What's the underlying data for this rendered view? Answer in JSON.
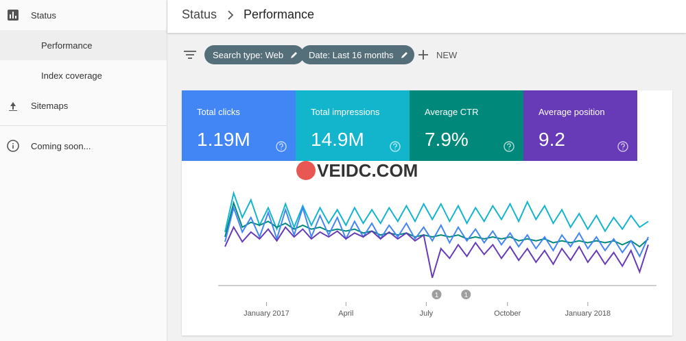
{
  "sidebar": {
    "items": [
      {
        "label": "Status"
      },
      {
        "label": "Performance"
      },
      {
        "label": "Index coverage"
      },
      {
        "label": "Sitemaps"
      },
      {
        "label": "Coming soon..."
      }
    ]
  },
  "header": {
    "breadcrumb": [
      "Status",
      "Performance"
    ]
  },
  "filters": {
    "chips": [
      "Search type: Web",
      "Date: Last 16 months"
    ],
    "new": "NEW"
  },
  "metrics": [
    {
      "label": "Total clicks",
      "value": "1.19M",
      "color": "#4285f4"
    },
    {
      "label": "Total impressions",
      "value": "14.9M",
      "color": "#12b5cb"
    },
    {
      "label": "Average CTR",
      "value": "7.9%",
      "color": "#00897b"
    },
    {
      "label": "Average position",
      "value": "9.2",
      "color": "#673ab7"
    }
  ],
  "watermark": "VEIDC.COM",
  "chart_data": {
    "type": "line",
    "xlim": [
      0,
      49
    ],
    "ylim": [
      0,
      100
    ],
    "xticks": [
      {
        "value": 4.8,
        "label": "January 2017"
      },
      {
        "value": 14,
        "label": "April"
      },
      {
        "value": 23.3,
        "label": "July"
      },
      {
        "value": 32.7,
        "label": "October"
      },
      {
        "value": 42,
        "label": "January 2018"
      }
    ],
    "annotations": [
      {
        "x": 24.5,
        "label": "1"
      },
      {
        "x": 27.9,
        "label": "1"
      }
    ],
    "series": [
      {
        "color": "#12b5cb",
        "values": [
          55,
          95,
          70,
          88,
          62,
          80,
          58,
          84,
          60,
          82,
          62,
          80,
          64,
          78,
          62,
          80,
          64,
          78,
          64,
          80,
          66,
          82,
          66,
          84,
          68,
          84,
          66,
          82,
          64,
          80,
          66,
          82,
          68,
          84,
          66,
          86,
          68,
          82,
          64,
          78,
          60,
          74,
          58,
          72,
          56,
          70,
          58,
          72,
          60,
          66
        ]
      },
      {
        "color": "#00897b",
        "values": [
          50,
          85,
          60,
          65,
          62,
          66,
          60,
          64,
          58,
          62,
          58,
          60,
          56,
          58,
          56,
          58,
          54,
          56,
          52,
          54,
          52,
          54,
          50,
          52,
          50,
          52,
          50,
          52,
          48,
          50,
          48,
          50,
          48,
          50,
          46,
          48,
          46,
          48,
          44,
          46,
          44,
          46,
          44,
          46,
          44,
          46,
          42,
          46,
          40,
          48
        ]
      },
      {
        "color": "#4285f4",
        "values": [
          45,
          80,
          55,
          70,
          50,
          75,
          48,
          78,
          52,
          80,
          50,
          72,
          52,
          70,
          48,
          66,
          50,
          64,
          48,
          62,
          50,
          64,
          48,
          60,
          46,
          62,
          44,
          60,
          46,
          58,
          44,
          56,
          42,
          54,
          40,
          52,
          38,
          50,
          36,
          52,
          40,
          54,
          38,
          50,
          36,
          48,
          34,
          46,
          30,
          50
        ]
      },
      {
        "color": "#673ab7",
        "values": [
          40,
          60,
          45,
          55,
          48,
          58,
          46,
          60,
          50,
          58,
          48,
          55,
          50,
          56,
          48,
          54,
          50,
          56,
          48,
          55,
          48,
          54,
          46,
          52,
          8,
          38,
          28,
          42,
          30,
          44,
          32,
          42,
          28,
          40,
          26,
          38,
          24,
          36,
          22,
          38,
          26,
          40,
          24,
          36,
          22,
          34,
          20,
          36,
          14,
          42
        ]
      }
    ]
  }
}
